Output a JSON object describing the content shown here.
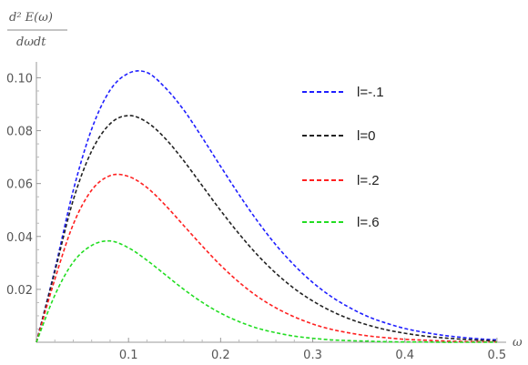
{
  "chart_data": {
    "type": "line",
    "title": "",
    "ylabel_numerator": "d² E(ω)",
    "ylabel_denominator": "dωdt",
    "xlabel": "ω",
    "xlim": [
      0,
      0.51
    ],
    "ylim": [
      0,
      0.106
    ],
    "x_ticks": [
      0.1,
      0.2,
      0.3,
      0.4,
      0.5
    ],
    "x_tick_labels": [
      "0.1",
      "0.2",
      "0.3",
      "0.4",
      "0.5"
    ],
    "y_ticks": [
      0.02,
      0.04,
      0.06,
      0.08,
      0.1
    ],
    "y_tick_labels": [
      "0.02",
      "0.04",
      "0.06",
      "0.08",
      "0.10"
    ],
    "grid": false,
    "legend_position": "top-right",
    "line_style": "dashed",
    "series": [
      {
        "name": "l=-.1",
        "color": "#1f1fff",
        "x": [
          0,
          0.02,
          0.04,
          0.06,
          0.08,
          0.1,
          0.12,
          0.14,
          0.16,
          0.18,
          0.2,
          0.22,
          0.24,
          0.26,
          0.28,
          0.3,
          0.32,
          0.34,
          0.36,
          0.38,
          0.4,
          0.42,
          0.44,
          0.46,
          0.48,
          0.5
        ],
        "values": [
          0,
          0.0275,
          0.0574,
          0.0806,
          0.0953,
          0.1017,
          0.102,
          0.0962,
          0.0878,
          0.0774,
          0.0665,
          0.0558,
          0.0458,
          0.0368,
          0.0291,
          0.0226,
          0.0173,
          0.0131,
          0.0097,
          0.0072,
          0.0052,
          0.0038,
          0.0027,
          0.0019,
          0.0013,
          0.0009
        ]
      },
      {
        "name": "l=0",
        "color": "#222222",
        "x": [
          0,
          0.02,
          0.04,
          0.06,
          0.08,
          0.1,
          0.12,
          0.14,
          0.16,
          0.18,
          0.2,
          0.22,
          0.24,
          0.26,
          0.28,
          0.3,
          0.32,
          0.34,
          0.36,
          0.38,
          0.4,
          0.42,
          0.44,
          0.46,
          0.48,
          0.5
        ],
        "values": [
          0,
          0.0267,
          0.0538,
          0.0723,
          0.0826,
          0.0857,
          0.0832,
          0.077,
          0.0686,
          0.0592,
          0.0498,
          0.041,
          0.033,
          0.0261,
          0.0203,
          0.0156,
          0.0118,
          0.0088,
          0.0065,
          0.0047,
          0.0034,
          0.0024,
          0.0017,
          0.0012,
          0.0008,
          0.0005
        ]
      },
      {
        "name": "l=.2",
        "color": "#ff2020",
        "x": [
          0,
          0.02,
          0.04,
          0.06,
          0.08,
          0.1,
          0.12,
          0.14,
          0.16,
          0.18,
          0.2,
          0.22,
          0.24,
          0.26,
          0.28,
          0.3,
          0.32,
          0.34,
          0.36,
          0.38,
          0.4,
          0.42,
          0.44,
          0.46,
          0.48,
          0.5
        ],
        "values": [
          0,
          0.0238,
          0.0446,
          0.0575,
          0.063,
          0.0627,
          0.0585,
          0.0518,
          0.0441,
          0.0364,
          0.0291,
          0.0227,
          0.0173,
          0.013,
          0.0096,
          0.0069,
          0.0049,
          0.0035,
          0.0024,
          0.0017,
          0.0011,
          0.0008,
          0.0005,
          0.0003,
          0.0002,
          0.0001
        ]
      },
      {
        "name": "l=.6",
        "color": "#22dd22",
        "x": [
          0,
          0.02,
          0.04,
          0.06,
          0.08,
          0.1,
          0.12,
          0.14,
          0.16,
          0.18,
          0.2,
          0.22,
          0.24,
          0.26,
          0.28,
          0.3,
          0.32,
          0.34,
          0.36,
          0.38,
          0.4,
          0.42,
          0.44,
          0.46,
          0.48,
          0.5
        ],
        "values": [
          0,
          0.0178,
          0.0303,
          0.0366,
          0.0383,
          0.0357,
          0.031,
          0.0255,
          0.02,
          0.0151,
          0.011,
          0.0078,
          0.0053,
          0.0036,
          0.0023,
          0.0015,
          0.0009,
          0.0006,
          0.0004,
          0.0002,
          0.0001,
          0.0001,
          0,
          0,
          0,
          0
        ]
      }
    ]
  }
}
